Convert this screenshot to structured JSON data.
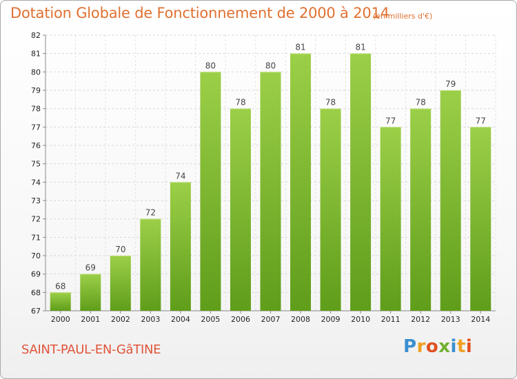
{
  "chart_data": {
    "type": "bar",
    "title": "Dotation Globale de Fonctionnement de 2000 à 2014",
    "unit_note": "(en milliers d'€)",
    "categories": [
      "2000",
      "2001",
      "2002",
      "2003",
      "2004",
      "2005",
      "2006",
      "2007",
      "2008",
      "2009",
      "2010",
      "2011",
      "2012",
      "2013",
      "2014"
    ],
    "values": [
      68,
      69,
      70,
      72,
      74,
      80,
      78,
      80,
      81,
      78,
      81,
      77,
      78,
      79,
      77
    ],
    "ylim": [
      67,
      82
    ],
    "yticks": [
      67,
      68,
      69,
      70,
      71,
      72,
      73,
      74,
      75,
      76,
      77,
      78,
      79,
      80,
      81,
      82
    ],
    "grid": true,
    "bar_color": "#7dba2e"
  },
  "commune": "SAINT-PAUL-EN-GâTINE",
  "logo": {
    "letters": [
      "P",
      "r",
      "o",
      "x",
      "i",
      "t",
      "i"
    ],
    "colors": [
      "#3a8fd0",
      "#f0a020",
      "#e05020",
      "#70b030",
      "#3a8fd0",
      "#f0a020",
      "#e05020"
    ]
  }
}
